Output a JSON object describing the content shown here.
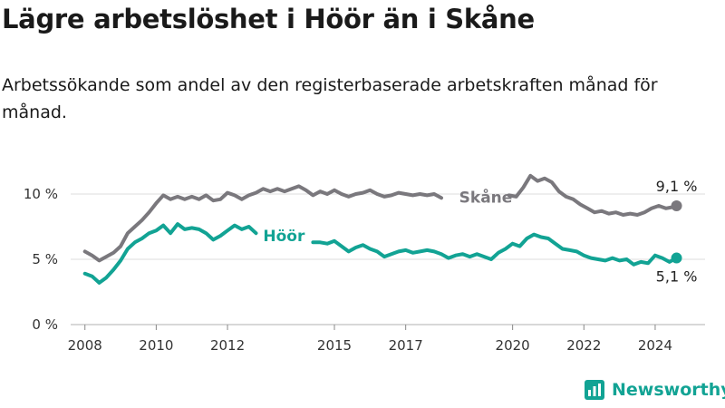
{
  "title": "Lägre arbetslöshet i Höör än i Skåne",
  "subtitle": "Arbetssökande som andel av den registerbaserade arbetskraften månad för månad.",
  "brand": {
    "name": "Newsworthy",
    "icon": "newsworthy-logo-icon",
    "color": "#12a394"
  },
  "chart_data": {
    "type": "line",
    "xlim": [
      2007.6,
      2025.4
    ],
    "ylim": [
      0,
      10
    ],
    "y_ticks": [
      {
        "value": 0,
        "label": "0 %"
      },
      {
        "value": 5,
        "label": "5 %"
      },
      {
        "value": 10,
        "label": "10 %"
      }
    ],
    "x_ticks": [
      {
        "value": 2008,
        "label": "2008"
      },
      {
        "value": 2010,
        "label": "2010"
      },
      {
        "value": 2012,
        "label": "2012"
      },
      {
        "value": 2015,
        "label": "2015"
      },
      {
        "value": 2017,
        "label": "2017"
      },
      {
        "value": 2020,
        "label": "2020"
      },
      {
        "value": 2022,
        "label": "2022"
      },
      {
        "value": 2024,
        "label": "2024"
      }
    ],
    "grid": true,
    "series": [
      {
        "name": "Skåne",
        "color": "#7a787d",
        "end_label": "9,1 %",
        "points": [
          [
            2008.0,
            5.6
          ],
          [
            2008.2,
            5.3
          ],
          [
            2008.4,
            4.9
          ],
          [
            2008.6,
            5.2
          ],
          [
            2008.8,
            5.5
          ],
          [
            2009.0,
            6.0
          ],
          [
            2009.2,
            7.0
          ],
          [
            2009.4,
            7.5
          ],
          [
            2009.6,
            8.0
          ],
          [
            2009.8,
            8.6
          ],
          [
            2010.0,
            9.3
          ],
          [
            2010.2,
            9.9
          ],
          [
            2010.4,
            9.6
          ],
          [
            2010.6,
            9.8
          ],
          [
            2010.8,
            9.6
          ],
          [
            2011.0,
            9.8
          ],
          [
            2011.2,
            9.6
          ],
          [
            2011.4,
            9.9
          ],
          [
            2011.6,
            9.5
          ],
          [
            2011.8,
            9.6
          ],
          [
            2012.0,
            10.1
          ],
          [
            2012.2,
            9.9
          ],
          [
            2012.4,
            9.6
          ],
          [
            2012.6,
            9.9
          ],
          [
            2012.8,
            10.1
          ],
          [
            2013.0,
            10.4
          ],
          [
            2013.2,
            10.2
          ],
          [
            2013.4,
            10.4
          ],
          [
            2013.6,
            10.2
          ],
          [
            2013.8,
            10.4
          ],
          [
            2014.0,
            10.6
          ],
          [
            2014.2,
            10.3
          ],
          [
            2014.4,
            9.9
          ],
          [
            2014.6,
            10.2
          ],
          [
            2014.8,
            10.0
          ],
          [
            2015.0,
            10.3
          ],
          [
            2015.2,
            10.0
          ],
          [
            2015.4,
            9.8
          ],
          [
            2015.6,
            10.0
          ],
          [
            2015.8,
            10.1
          ],
          [
            2016.0,
            10.3
          ],
          [
            2016.2,
            10.0
          ],
          [
            2016.4,
            9.8
          ],
          [
            2016.6,
            9.9
          ],
          [
            2016.8,
            10.1
          ],
          [
            2017.0,
            10.0
          ],
          [
            2017.2,
            9.9
          ],
          [
            2017.4,
            10.0
          ],
          [
            2017.6,
            9.9
          ],
          [
            2017.8,
            10.0
          ],
          [
            2018.0,
            9.7
          ],
          null,
          [
            2019.9,
            9.9
          ],
          [
            2020.1,
            9.8
          ],
          [
            2020.3,
            10.5
          ],
          [
            2020.5,
            11.4
          ],
          [
            2020.7,
            11.0
          ],
          [
            2020.9,
            11.2
          ],
          [
            2021.1,
            10.9
          ],
          [
            2021.3,
            10.2
          ],
          [
            2021.5,
            9.8
          ],
          [
            2021.7,
            9.6
          ],
          [
            2021.9,
            9.2
          ],
          [
            2022.1,
            8.9
          ],
          [
            2022.3,
            8.6
          ],
          [
            2022.5,
            8.7
          ],
          [
            2022.7,
            8.5
          ],
          [
            2022.9,
            8.6
          ],
          [
            2023.1,
            8.4
          ],
          [
            2023.3,
            8.5
          ],
          [
            2023.5,
            8.4
          ],
          [
            2023.7,
            8.6
          ],
          [
            2023.9,
            8.9
          ],
          [
            2024.1,
            9.1
          ],
          [
            2024.3,
            8.9
          ],
          [
            2024.5,
            9.0
          ],
          [
            2024.6,
            9.1
          ]
        ]
      },
      {
        "name": "Höör",
        "color": "#12a394",
        "end_label": "5,1 %",
        "points": [
          [
            2008.0,
            3.9
          ],
          [
            2008.2,
            3.7
          ],
          [
            2008.4,
            3.2
          ],
          [
            2008.6,
            3.6
          ],
          [
            2008.8,
            4.2
          ],
          [
            2009.0,
            4.9
          ],
          [
            2009.2,
            5.8
          ],
          [
            2009.4,
            6.3
          ],
          [
            2009.6,
            6.6
          ],
          [
            2009.8,
            7.0
          ],
          [
            2010.0,
            7.2
          ],
          [
            2010.2,
            7.6
          ],
          [
            2010.4,
            7.0
          ],
          [
            2010.6,
            7.7
          ],
          [
            2010.8,
            7.3
          ],
          [
            2011.0,
            7.4
          ],
          [
            2011.2,
            7.3
          ],
          [
            2011.4,
            7.0
          ],
          [
            2011.6,
            6.5
          ],
          [
            2011.8,
            6.8
          ],
          [
            2012.0,
            7.2
          ],
          [
            2012.2,
            7.6
          ],
          [
            2012.4,
            7.3
          ],
          [
            2012.6,
            7.5
          ],
          [
            2012.8,
            7.0
          ],
          null,
          [
            2014.4,
            6.3
          ],
          [
            2014.6,
            6.3
          ],
          [
            2014.8,
            6.2
          ],
          [
            2015.0,
            6.4
          ],
          [
            2015.2,
            6.0
          ],
          [
            2015.4,
            5.6
          ],
          [
            2015.6,
            5.9
          ],
          [
            2015.8,
            6.1
          ],
          [
            2016.0,
            5.8
          ],
          [
            2016.2,
            5.6
          ],
          [
            2016.4,
            5.2
          ],
          [
            2016.6,
            5.4
          ],
          [
            2016.8,
            5.6
          ],
          [
            2017.0,
            5.7
          ],
          [
            2017.2,
            5.5
          ],
          [
            2017.4,
            5.6
          ],
          [
            2017.6,
            5.7
          ],
          [
            2017.8,
            5.6
          ],
          [
            2018.0,
            5.4
          ],
          [
            2018.2,
            5.1
          ],
          [
            2018.4,
            5.3
          ],
          [
            2018.6,
            5.4
          ],
          [
            2018.8,
            5.2
          ],
          [
            2019.0,
            5.4
          ],
          [
            2019.2,
            5.2
          ],
          [
            2019.4,
            5.0
          ],
          [
            2019.6,
            5.5
          ],
          [
            2019.8,
            5.8
          ],
          [
            2020.0,
            6.2
          ],
          [
            2020.2,
            6.0
          ],
          [
            2020.4,
            6.6
          ],
          [
            2020.6,
            6.9
          ],
          [
            2020.8,
            6.7
          ],
          [
            2021.0,
            6.6
          ],
          [
            2021.2,
            6.2
          ],
          [
            2021.4,
            5.8
          ],
          [
            2021.6,
            5.7
          ],
          [
            2021.8,
            5.6
          ],
          [
            2022.0,
            5.3
          ],
          [
            2022.2,
            5.1
          ],
          [
            2022.4,
            5.0
          ],
          [
            2022.6,
            4.9
          ],
          [
            2022.8,
            5.1
          ],
          [
            2023.0,
            4.9
          ],
          [
            2023.2,
            5.0
          ],
          [
            2023.4,
            4.6
          ],
          [
            2023.6,
            4.8
          ],
          [
            2023.8,
            4.7
          ],
          [
            2024.0,
            5.3
          ],
          [
            2024.2,
            5.1
          ],
          [
            2024.4,
            4.8
          ],
          [
            2024.6,
            5.1
          ]
        ]
      }
    ]
  }
}
